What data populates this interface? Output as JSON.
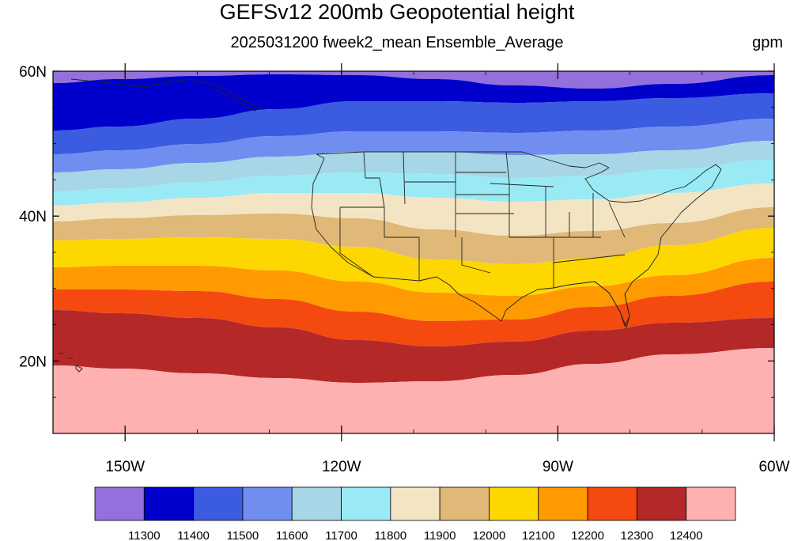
{
  "title": "GEFSv12 200mb Geopotential height",
  "subtitle": "2025031200 fweek2_mean Ensemble_Average",
  "units": "gpm",
  "map": {
    "lon_range": [
      -160,
      -60
    ],
    "lat_range": [
      10,
      60
    ],
    "lat_ticks": [
      {
        "value": 60,
        "label": "60N"
      },
      {
        "value": 40,
        "label": "40N"
      },
      {
        "value": 20,
        "label": "20N"
      }
    ],
    "lon_ticks": [
      {
        "value": -150,
        "label": "150W"
      },
      {
        "value": -120,
        "label": "120W"
      },
      {
        "value": -90,
        "label": "90W"
      },
      {
        "value": -60,
        "label": "60W"
      }
    ]
  },
  "colorbar": {
    "levels": [
      11300,
      11400,
      11500,
      11600,
      11700,
      11800,
      11900,
      12000,
      12100,
      12200,
      12300,
      12400
    ],
    "colors": [
      "#9370db",
      "#0000cd",
      "#3b5be0",
      "#6f8ef0",
      "#a7d6e6",
      "#9aeaf5",
      "#f3e5c4",
      "#e0b878",
      "#ffd700",
      "#ff9a00",
      "#f44a10",
      "#b52828",
      "#ffb0b0"
    ]
  }
}
